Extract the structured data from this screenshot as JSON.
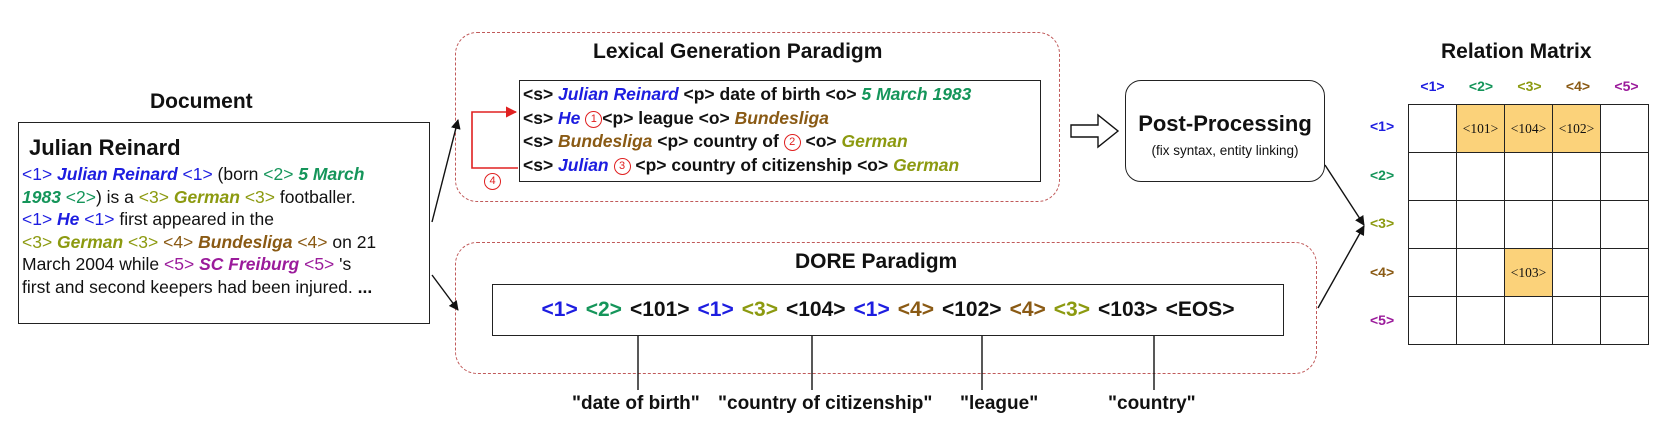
{
  "document": {
    "title": "Document",
    "heading": "Julian Reinard",
    "lines": [
      [
        {
          "t": "<1> ",
          "c": "blue"
        },
        {
          "t": "Julian Reinard",
          "c": "blue bi"
        },
        {
          "t": " <1> ",
          "c": "blue"
        },
        {
          "t": "(born ",
          "c": ""
        },
        {
          "t": "<2> ",
          "c": "green"
        },
        {
          "t": "5 March",
          "c": "green bi"
        }
      ],
      [
        {
          "t": "1983",
          "c": "green bi"
        },
        {
          "t": " <2>",
          "c": "green"
        },
        {
          "t": ") is a ",
          "c": ""
        },
        {
          "t": "<3> ",
          "c": "olive"
        },
        {
          "t": "German",
          "c": "olive bi"
        },
        {
          "t": " <3> ",
          "c": "olive"
        },
        {
          "t": "footballer.",
          "c": ""
        }
      ],
      [
        {
          "t": "<1> ",
          "c": "blue"
        },
        {
          "t": "He",
          "c": "blue bi"
        },
        {
          "t": " <1> ",
          "c": "blue"
        },
        {
          "t": "first appeared in the",
          "c": ""
        }
      ],
      [
        {
          "t": "<3> ",
          "c": "olive"
        },
        {
          "t": "German",
          "c": "olive bi"
        },
        {
          "t": " <3> ",
          "c": "olive"
        },
        {
          "t": "<4> ",
          "c": "brown"
        },
        {
          "t": "Bundesliga",
          "c": "brown bi"
        },
        {
          "t": " <4> ",
          "c": "brown"
        },
        {
          "t": "on 21",
          "c": ""
        }
      ],
      [
        {
          "t": "March 2004 while ",
          "c": ""
        },
        {
          "t": "<5> ",
          "c": "purple"
        },
        {
          "t": "SC Freiburg",
          "c": "purple bi"
        },
        {
          "t": " <5> ",
          "c": "purple"
        },
        {
          "t": "'s",
          "c": ""
        }
      ],
      [
        {
          "t": "first and second keepers had been injured. ",
          "c": ""
        },
        {
          "t": "...",
          "c": "b"
        }
      ]
    ]
  },
  "lexical": {
    "title": "Lexical Generation Paradigm",
    "lines": [
      [
        {
          "t": "<s> ",
          "c": ""
        },
        {
          "t": "Julian Reinard",
          "c": "blue bi"
        },
        {
          "t": " <p> ",
          "c": ""
        },
        {
          "t": "date of birth ",
          "c": ""
        },
        {
          "t": "<o> ",
          "c": ""
        },
        {
          "t": "5 March 1983",
          "c": "green bi"
        }
      ],
      [
        {
          "t": "<s> ",
          "c": ""
        },
        {
          "t": "He",
          "c": "blue bi"
        },
        {
          "t": " ",
          "c": ""
        },
        {
          "circ": "1"
        },
        {
          "t": "<p>  league ",
          "c": ""
        },
        {
          "t": "<o> ",
          "c": ""
        },
        {
          "t": "Bundesliga",
          "c": "brown bi"
        }
      ],
      [
        {
          "t": "<s> ",
          "c": ""
        },
        {
          "t": "Bundesliga",
          "c": "brown bi"
        },
        {
          "t": "  <p> country of ",
          "c": ""
        },
        {
          "circ": "2"
        },
        {
          "t": " <o> ",
          "c": ""
        },
        {
          "t": "German",
          "c": "olive bi"
        }
      ],
      [
        {
          "t": "<s> ",
          "c": ""
        },
        {
          "t": "Julian",
          "c": "blue bi"
        },
        {
          "t": " ",
          "c": ""
        },
        {
          "circ": "3"
        },
        {
          "t": " <p> country of citizenship ",
          "c": ""
        },
        {
          "t": "<o> ",
          "c": ""
        },
        {
          "t": "German",
          "c": "olive bi"
        }
      ]
    ],
    "side_marker": "4"
  },
  "dore": {
    "title": "DORE Paradigm",
    "tokens": [
      {
        "t": "<1>",
        "c": "blue"
      },
      {
        "t": "<2>",
        "c": "green"
      },
      {
        "t": "<101>",
        "c": ""
      },
      {
        "t": "<1>",
        "c": "blue"
      },
      {
        "t": "<3>",
        "c": "olive"
      },
      {
        "t": "<104>",
        "c": ""
      },
      {
        "t": "<1>",
        "c": "blue"
      },
      {
        "t": "<4>",
        "c": "brown"
      },
      {
        "t": "<102>",
        "c": ""
      },
      {
        "t": "<4>",
        "c": "brown"
      },
      {
        "t": "<3>",
        "c": "olive"
      },
      {
        "t": "<103>",
        "c": ""
      },
      {
        "t": "<EOS>",
        "c": ""
      }
    ],
    "relation_labels": [
      "\"date of birth\"",
      "\"country of citizenship\"",
      "\"league\"",
      "\"country\""
    ]
  },
  "post_processing": {
    "title": "Post-Processing",
    "subtitle": "(fix syntax, entity linking)"
  },
  "matrix": {
    "title": "Relation Matrix",
    "labels": [
      {
        "t": "<1>",
        "c": "blue"
      },
      {
        "t": "<2>",
        "c": "green"
      },
      {
        "t": "<3>",
        "c": "olive"
      },
      {
        "t": "<4>",
        "c": "brown"
      },
      {
        "t": "<5>",
        "c": "purple"
      }
    ],
    "cells": [
      [
        "",
        "<101>",
        "<104>",
        "<102>",
        ""
      ],
      [
        "",
        "",
        "",
        "",
        ""
      ],
      [
        "",
        "",
        "",
        "",
        ""
      ],
      [
        "",
        "",
        "<103>",
        "",
        ""
      ],
      [
        "",
        "",
        "",
        "",
        ""
      ]
    ],
    "filled_color": "#fbd27a"
  },
  "colors": {
    "blue": "#1d1de0",
    "green": "#15955a",
    "olive": "#8c9a10",
    "brown": "#8a5a14",
    "purple": "#9b1b9b",
    "marker_red": "#e02020",
    "dashed_border": "#c05a5a"
  }
}
